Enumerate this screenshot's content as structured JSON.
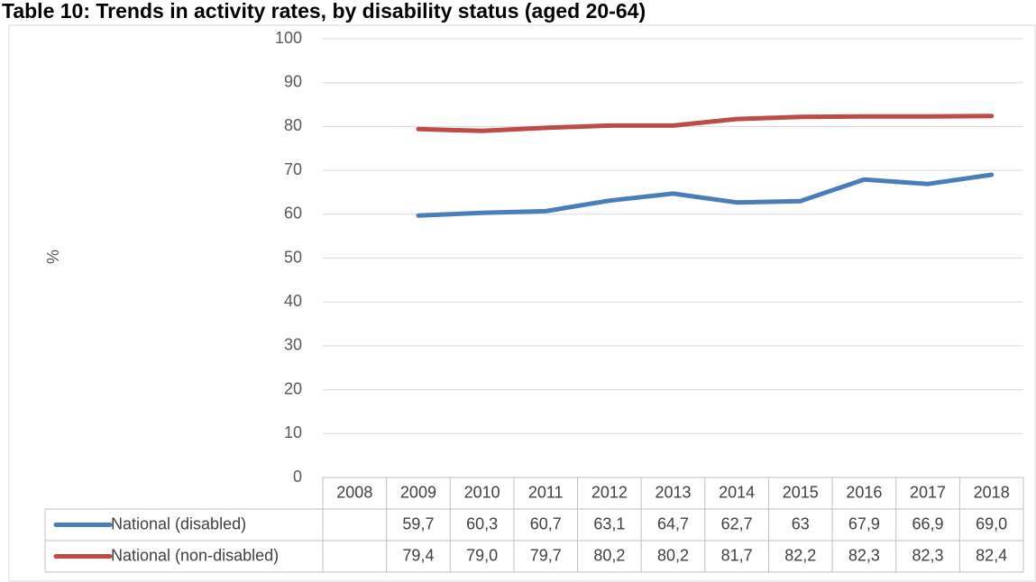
{
  "chart_data": {
    "type": "line",
    "title": "Table 10: Trends in activity rates, by disability status (aged 20-64)",
    "y_label": "%",
    "categories": [
      "2008",
      "2009",
      "2010",
      "2011",
      "2012",
      "2013",
      "2014",
      "2015",
      "2016",
      "2017",
      "2018"
    ],
    "series": [
      {
        "name": "National (disabled)",
        "color": "#4a7ebb",
        "values": [
          null,
          59.7,
          60.3,
          60.7,
          63.1,
          64.7,
          62.7,
          63,
          67.9,
          66.9,
          69.0
        ],
        "value_labels": [
          null,
          "59,7",
          "60,3",
          "60,7",
          "63,1",
          "64,7",
          "62,7",
          "63",
          "67,9",
          "66,9",
          "69,0"
        ]
      },
      {
        "name": "National (non-disabled)",
        "color": "#be4b48",
        "values": [
          null,
          79.4,
          79.0,
          79.7,
          80.2,
          80.2,
          81.7,
          82.2,
          82.3,
          82.3,
          82.4
        ],
        "value_labels": [
          null,
          "79,4",
          "79,0",
          "79,7",
          "80,2",
          "80,2",
          "81,7",
          "82,2",
          "82,3",
          "82,3",
          "82,4"
        ]
      }
    ],
    "ylim": [
      0,
      100
    ],
    "yticks": [
      0,
      10,
      20,
      30,
      40,
      50,
      60,
      70,
      80,
      90,
      100
    ],
    "grid": true
  }
}
